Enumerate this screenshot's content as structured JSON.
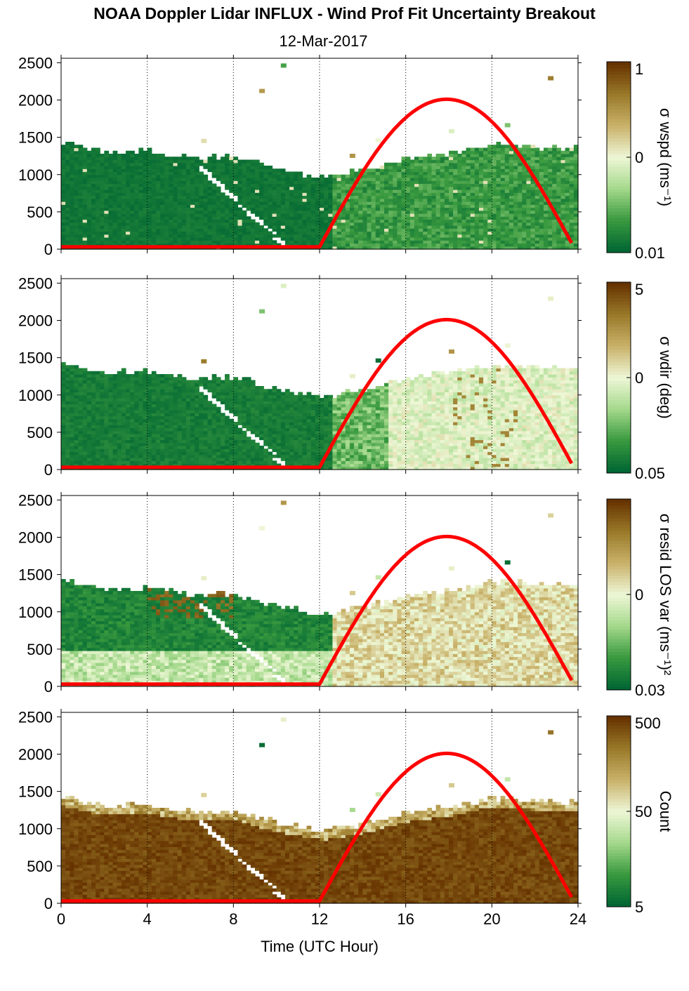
{
  "title": "NOAA Doppler Lidar INFLUX - Wind Prof Fit Uncertainty Breakout",
  "subtitle": "12-Mar-2017",
  "xlabel": "Time (UTC Hour)",
  "colors": {
    "dark_green": "#006633",
    "mid_green": "#3a9a3f",
    "light_green": "#a5d98c",
    "pale": "#eef7d6",
    "khaki": "#c9b26a",
    "olive_brown": "#9a7a2a",
    "dark_brown": "#663300",
    "sun_curve": "#ff0000"
  },
  "chart_data": [
    {
      "type": "heatmap",
      "panel": "wind speed uncertainty",
      "x": {
        "range": [
          0,
          24
        ],
        "ticks": [
          0,
          4,
          8,
          12,
          16,
          20,
          24
        ]
      },
      "y": {
        "range": [
          0,
          2560
        ],
        "ticks": [
          0,
          500,
          1000,
          1500,
          2000,
          2500
        ]
      },
      "colorbar": {
        "label": "σ wspd (ms⁻¹)",
        "ticks": [
          "1",
          "0",
          "0.01"
        ]
      },
      "data_top_profile": {
        "x": [
          0,
          2,
          4,
          6,
          8,
          10,
          12,
          14,
          16,
          18,
          20,
          22,
          23.8
        ],
        "y": [
          1400,
          1280,
          1300,
          1200,
          1220,
          1050,
          950,
          1050,
          1200,
          1280,
          1400,
          1350,
          1350
        ]
      },
      "dominant_values": "low (dark green) nearly everywhere; mid green after 12 UTC",
      "sun_elevation_curve": {
        "x": [
          0,
          12,
          18,
          23.8
        ],
        "y": [
          30,
          30,
          2010,
          30
        ]
      }
    },
    {
      "type": "heatmap",
      "panel": "wind direction uncertainty",
      "x": {
        "range": [
          0,
          24
        ],
        "ticks": [
          0,
          4,
          8,
          12,
          16,
          20,
          24
        ]
      },
      "y": {
        "range": [
          0,
          2560
        ],
        "ticks": [
          0,
          500,
          1000,
          1500,
          2000,
          2500
        ]
      },
      "colorbar": {
        "label": "σ wdir (deg)",
        "ticks": [
          "5",
          "0",
          "0.05"
        ]
      },
      "data_top_profile": {
        "x": [
          0,
          2,
          4,
          6,
          8,
          10,
          12,
          14,
          16,
          18,
          20,
          22,
          23.8
        ],
        "y": [
          1400,
          1280,
          1300,
          1200,
          1220,
          1050,
          950,
          1050,
          1200,
          1280,
          1400,
          1350,
          1350
        ]
      },
      "dominant_values": "dark green before 13 UTC; pale green to tan after 15 UTC",
      "sun_elevation_curve": {
        "x": [
          0,
          12,
          18,
          23.8
        ],
        "y": [
          30,
          30,
          2010,
          30
        ]
      }
    },
    {
      "type": "heatmap",
      "panel": "residual LOS variance",
      "x": {
        "range": [
          0,
          24
        ],
        "ticks": [
          0,
          4,
          8,
          12,
          16,
          20,
          24
        ]
      },
      "y": {
        "range": [
          0,
          2560
        ],
        "ticks": [
          0,
          500,
          1000,
          1500,
          2000,
          2500
        ]
      },
      "colorbar": {
        "label": "σ resid LOS var (ms⁻¹)²",
        "ticks": [
          "0",
          "0.03"
        ]
      },
      "data_top_profile": {
        "x": [
          0,
          2,
          4,
          6,
          8,
          10,
          12,
          14,
          16,
          18,
          20,
          22,
          23.8
        ],
        "y": [
          1400,
          1280,
          1300,
          1200,
          1220,
          1050,
          950,
          1050,
          1200,
          1280,
          1400,
          1350,
          1350
        ]
      },
      "dominant_values": "dark green aloft before 12 UTC with pale low levels; khaki/tan after 13 UTC",
      "sun_elevation_curve": {
        "x": [
          0,
          12,
          18,
          23.8
        ],
        "y": [
          30,
          30,
          2010,
          30
        ]
      }
    },
    {
      "type": "heatmap",
      "panel": "point count",
      "x": {
        "range": [
          0,
          24
        ],
        "ticks": [
          0,
          4,
          8,
          12,
          16,
          20,
          24
        ]
      },
      "y": {
        "range": [
          0,
          2560
        ],
        "ticks": [
          0,
          500,
          1000,
          1500,
          2000,
          2500
        ]
      },
      "colorbar": {
        "label": "Count",
        "ticks": [
          "500",
          "50",
          "5"
        ]
      },
      "data_top_profile": {
        "x": [
          0,
          2,
          4,
          6,
          8,
          10,
          12,
          14,
          16,
          18,
          20,
          22,
          23.8
        ],
        "y": [
          1400,
          1280,
          1300,
          1200,
          1220,
          1050,
          950,
          1050,
          1200,
          1280,
          1400,
          1350,
          1350
        ]
      },
      "dominant_values": "high counts (dark brown) throughout",
      "sun_elevation_curve": {
        "x": [
          0,
          12,
          18,
          23.8
        ],
        "y": [
          30,
          30,
          2010,
          30
        ]
      }
    }
  ]
}
